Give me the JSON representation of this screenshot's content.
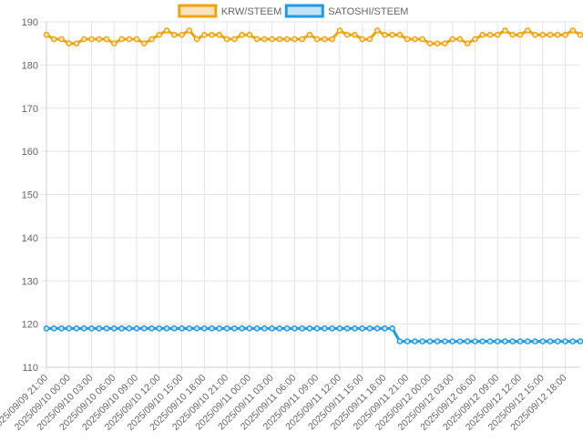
{
  "chart_data": {
    "type": "line",
    "x_labels": [
      "2025/09/09 21:00",
      "2025/09/10 00:00",
      "2025/09/10 03:00",
      "2025/09/10 06:00",
      "2025/09/10 09:00",
      "2025/09/10 12:00",
      "2025/09/10 15:00",
      "2025/09/10 18:00",
      "2025/09/10 21:00",
      "2025/09/11 00:00",
      "2025/09/11 03:00",
      "2025/09/11 06:00",
      "2025/09/11 09:00",
      "2025/09/11 12:00",
      "2025/09/11 15:00",
      "2025/09/11 18:00",
      "2025/09/11 21:00",
      "2025/09/12 00:00",
      "2025/09/12 03:00",
      "2025/09/12 06:00",
      "2025/09/12 09:00",
      "2025/09/12 12:00",
      "2025/09/12 15:00",
      "2025/09/12 18:00"
    ],
    "label_every": 3,
    "ylim": [
      110,
      190
    ],
    "y_ticks": [
      110,
      120,
      130,
      140,
      150,
      160,
      170,
      180,
      190
    ],
    "grid": true,
    "legend_position": "top",
    "series": [
      {
        "name": "KRW/STEEM",
        "color": "#f0a30a",
        "fill": "#fbe3bf",
        "values": [
          187,
          186,
          186,
          185,
          185,
          186,
          186,
          186,
          186,
          185,
          186,
          186,
          186,
          185,
          186,
          187,
          188,
          187,
          187,
          188,
          186,
          187,
          187,
          187,
          186,
          186,
          187,
          187,
          186,
          186,
          186,
          186,
          186,
          186,
          186,
          187,
          186,
          186,
          186,
          188,
          187,
          187,
          186,
          186,
          188,
          187,
          187,
          187,
          186,
          186,
          186,
          185,
          185,
          185,
          186,
          186,
          185,
          186,
          187,
          187,
          187,
          188,
          187,
          187,
          188,
          187,
          187,
          187,
          187,
          187,
          188,
          187
        ]
      },
      {
        "name": "SATOSHI/STEEM",
        "color": "#1e9be3",
        "fill": "#c5e3f6",
        "values": [
          119,
          119,
          119,
          119,
          119,
          119,
          119,
          119,
          119,
          119,
          119,
          119,
          119,
          119,
          119,
          119,
          119,
          119,
          119,
          119,
          119,
          119,
          119,
          119,
          119,
          119,
          119,
          119,
          119,
          119,
          119,
          119,
          119,
          119,
          119,
          119,
          119,
          119,
          119,
          119,
          119,
          119,
          119,
          119,
          119,
          119,
          119,
          116,
          116,
          116,
          116,
          116,
          116,
          116,
          116,
          116,
          116,
          116,
          116,
          116,
          116,
          116,
          116,
          116,
          116,
          116,
          116,
          116,
          116,
          116,
          116,
          116
        ]
      }
    ]
  }
}
